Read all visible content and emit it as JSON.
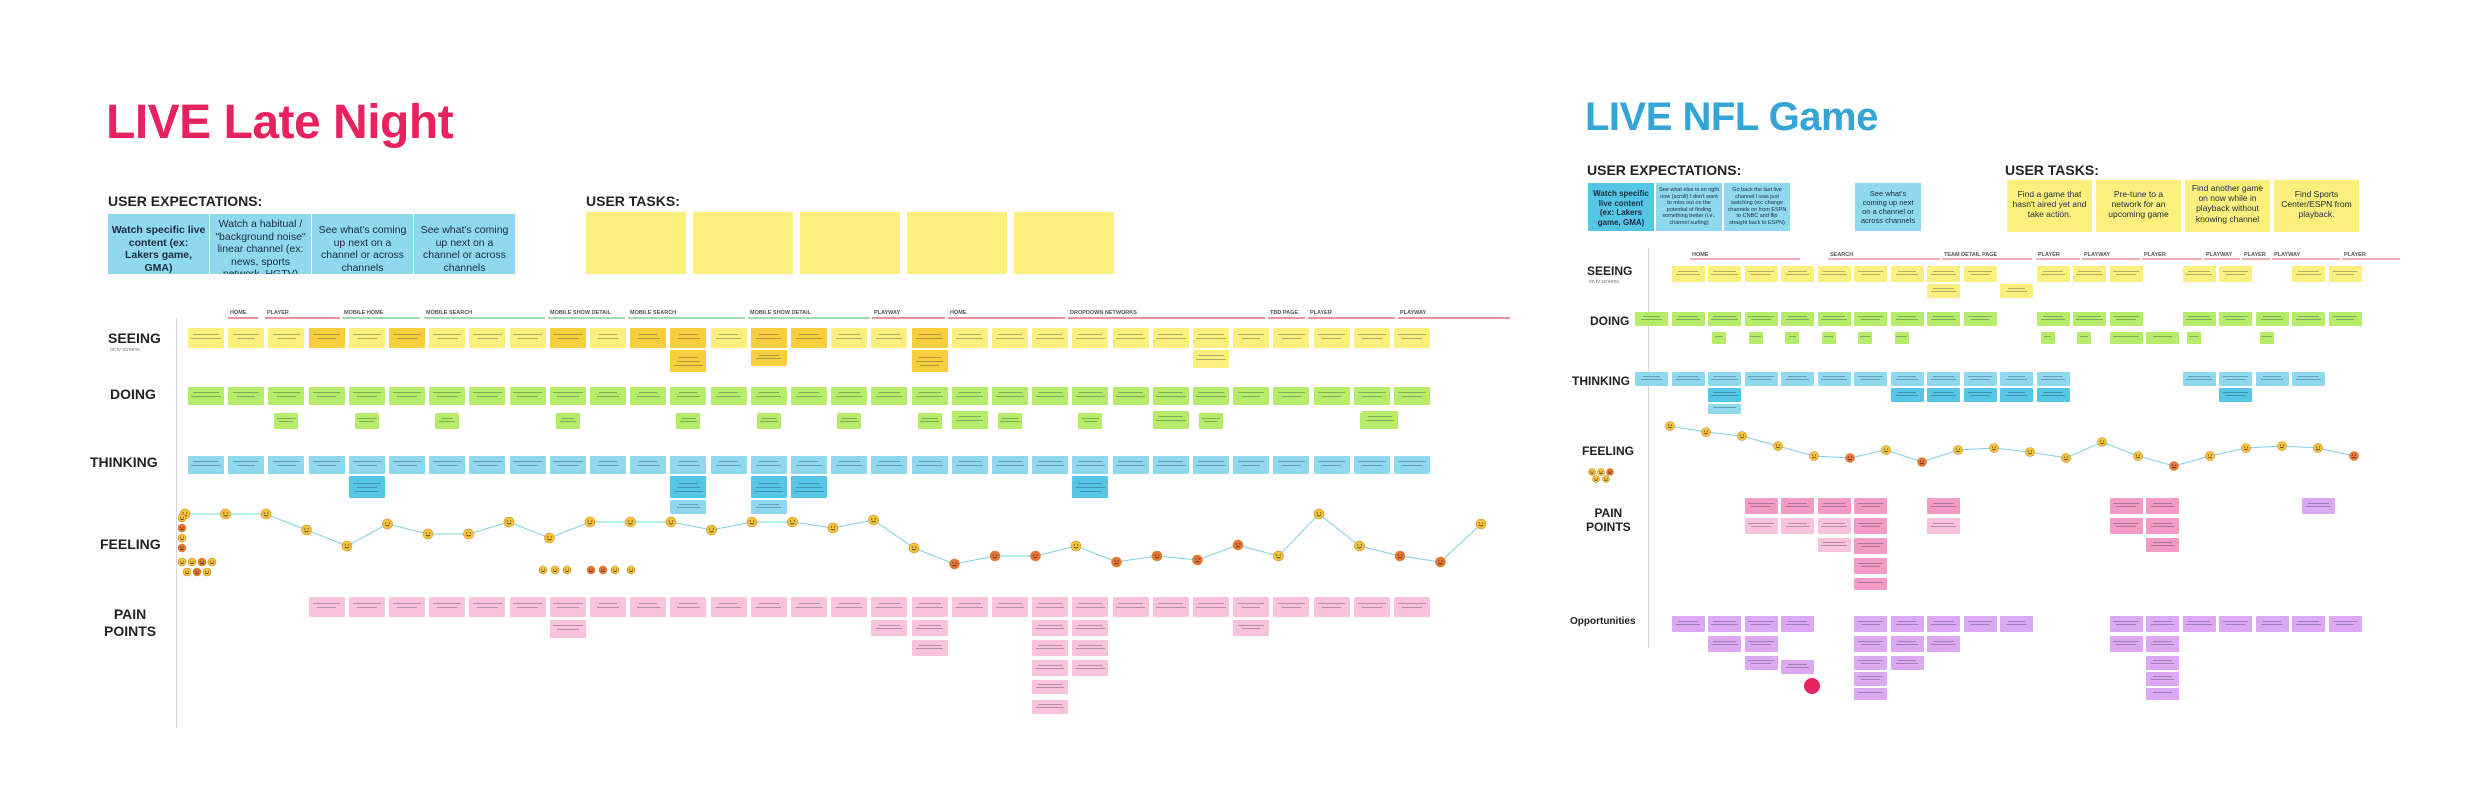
{
  "colors": {
    "left_title": "#e8225f",
    "right_title": "#34a5d6",
    "yellow": "#fbf07e",
    "gold": "#f7cf3d",
    "green": "#b6ec6a",
    "blue": "#8fd9ee",
    "blue_dark": "#56c6e6",
    "pink": "#f9c3dd",
    "pink_dark": "#f49bc5",
    "lilac": "#dca8f2",
    "phase_line_red": "#e25566",
    "phase_line_green": "#6fc57a",
    "feeling_line": "#7fd0df",
    "emoji_happy": "#f5c43a",
    "emoji_sad": "#e8743a",
    "dot_accent": "#e8225f"
  },
  "left": {
    "title": "LIVE Late Night",
    "expectations": {
      "heading": "USER EXPECTATIONS:",
      "items": [
        "Watch specific live content (ex: Lakers game, GMA)",
        "Watch a habitual / \"background noise\" linear channel (ex: news, sports network, HGTV)",
        "See what's coming up next on a channel or across channels",
        "See what's coming up next on a channel or across channels"
      ]
    },
    "tasks": {
      "heading": "USER TASKS:"
    },
    "rows": [
      "SEEING",
      "DOING",
      "THINKING",
      "FEELING",
      "PAIN\nPOINTS"
    ],
    "seeing_sub": "on tv screens",
    "phases": [
      "HOME",
      "PLAYER",
      "MOBILE HOME",
      "MOBILE SEARCH",
      "MOBILE SHOW DETAIL",
      "MOBILE SEARCH",
      "MOBILE SHOW DETAIL",
      "PLAYWAY",
      "HOME",
      "DROPDOWN NETWORKS",
      "TBD PAGE",
      "PLAYER",
      "PLAYWAY"
    ]
  },
  "right": {
    "title": "LIVE NFL Game",
    "expectations": {
      "heading": "USER EXPECTATIONS:",
      "items": [
        "Watch specific live content (ex: Lakers game, GMA)",
        "See what else is on right now (scroll) I don't want to miss out on the potential of finding something better (i.e., channel surfing)",
        "Go back the last live channel I was just watching (ex: change channels on from ESPN to CNBC and flip straight back to ESPN)",
        "See what's coming up next on a channel or across channels"
      ]
    },
    "tasks": {
      "heading": "USER TASKS:",
      "items": [
        "Find a game that hasn't aired yet and take action.",
        "Pre-tune to a network for an upcoming game",
        "Find another game on now while in playback without knowing channel",
        "Find Sports Center/ESPN from playback."
      ]
    },
    "rows": [
      "SEEING",
      "DOING",
      "THINKING",
      "FEELING",
      "PAIN\nPOINTS",
      "Opportunities"
    ],
    "seeing_sub": "on tv screens",
    "phases": [
      "HOME",
      "SEARCH",
      "TEAM DETAIL PAGE",
      "PLAYER",
      "PLAYWAY",
      "PLAYER",
      "PLAYWAY",
      "PLAYER",
      "PLAYWAY",
      "PLAYER"
    ]
  }
}
